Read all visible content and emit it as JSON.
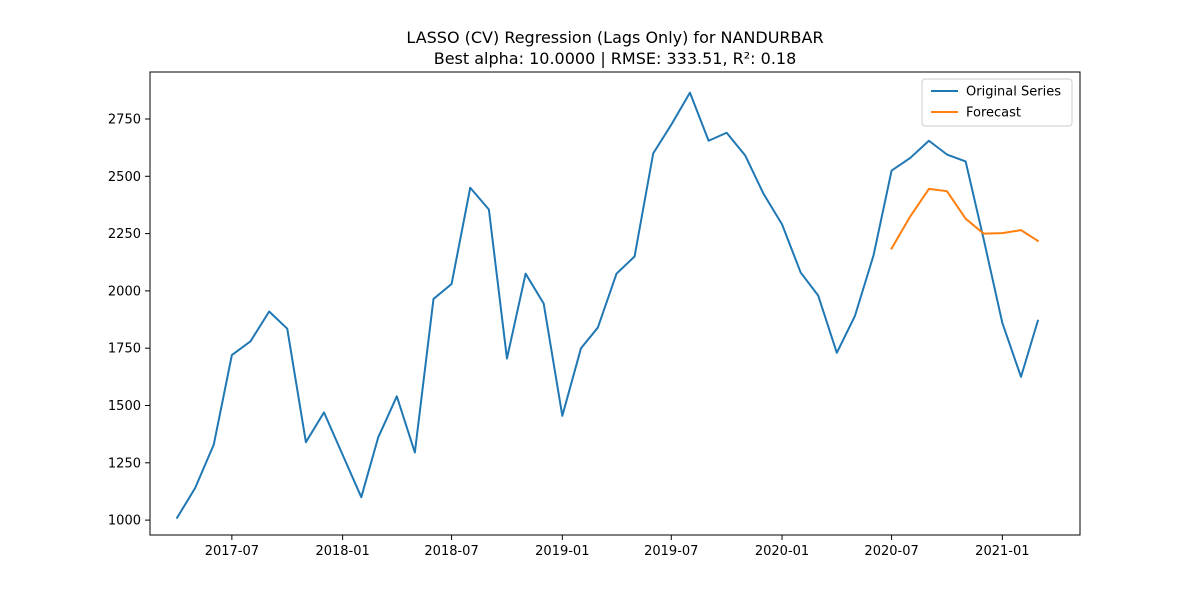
{
  "chart_data": {
    "type": "line",
    "title": "LASSO (CV) Regression (Lags Only) for NANDURBAR",
    "subtitle": "Best alpha: 10.0000 | RMSE: 333.51, R²: 0.18",
    "xlabel": "",
    "ylabel": "",
    "grid": false,
    "legend_position": "top-right",
    "x_range": [
      "2017-02-15",
      "2021-05-10"
    ],
    "ylim": [
      935,
      2955
    ],
    "x_ticks": [
      "2017-07-01",
      "2018-01-01",
      "2018-07-01",
      "2019-01-01",
      "2019-07-01",
      "2020-01-01",
      "2020-07-01",
      "2021-01-01"
    ],
    "x_tick_labels": [
      "2017-07",
      "2018-01",
      "2018-07",
      "2019-01",
      "2019-07",
      "2020-01",
      "2020-07",
      "2021-01"
    ],
    "y_ticks": [
      1000,
      1250,
      1500,
      1750,
      2000,
      2250,
      2500,
      2750
    ],
    "y_tick_labels": [
      "1000",
      "1250",
      "1500",
      "1750",
      "2000",
      "2250",
      "2500",
      "2750"
    ],
    "series": [
      {
        "name": "Original Series",
        "color": "#1f77b4",
        "x": [
          "2017-04-01",
          "2017-05-01",
          "2017-06-01",
          "2017-07-01",
          "2017-08-01",
          "2017-09-01",
          "2017-10-01",
          "2017-11-01",
          "2017-12-01",
          "2018-01-01",
          "2018-02-01",
          "2018-03-01",
          "2018-04-01",
          "2018-05-01",
          "2018-06-01",
          "2018-07-01",
          "2018-08-01",
          "2018-09-01",
          "2018-10-01",
          "2018-11-01",
          "2018-12-01",
          "2019-01-01",
          "2019-02-01",
          "2019-03-01",
          "2019-04-01",
          "2019-05-01",
          "2019-06-01",
          "2019-07-01",
          "2019-08-01",
          "2019-09-01",
          "2019-10-01",
          "2019-11-01",
          "2019-12-01",
          "2020-01-01",
          "2020-02-01",
          "2020-03-01",
          "2020-04-01",
          "2020-05-01",
          "2020-06-01",
          "2020-07-01",
          "2020-08-01",
          "2020-09-01",
          "2020-10-01",
          "2020-11-01",
          "2020-12-01",
          "2021-01-01",
          "2021-02-01",
          "2021-03-01"
        ],
        "values": [
          1010,
          1140,
          1330,
          1720,
          1780,
          1910,
          1835,
          1340,
          1470,
          1285,
          1100,
          1360,
          1540,
          1295,
          1965,
          2030,
          2450,
          2355,
          1705,
          2075,
          1945,
          1455,
          1750,
          1840,
          2075,
          2150,
          2600,
          2725,
          2865,
          2655,
          2690,
          2590,
          2425,
          2290,
          2080,
          1980,
          1730,
          1890,
          2155,
          2525,
          2580,
          2655,
          2595,
          2565,
          2225,
          1860,
          1625,
          1870
        ]
      },
      {
        "name": "Forecast",
        "color": "#ff7f0e",
        "x": [
          "2020-07-01",
          "2020-08-01",
          "2020-09-01",
          "2020-10-01",
          "2020-11-01",
          "2020-12-01",
          "2021-01-01",
          "2021-02-01",
          "2021-03-01"
        ],
        "values": [
          2185,
          2325,
          2445,
          2435,
          2315,
          2250,
          2252,
          2265,
          2218
        ]
      }
    ]
  }
}
